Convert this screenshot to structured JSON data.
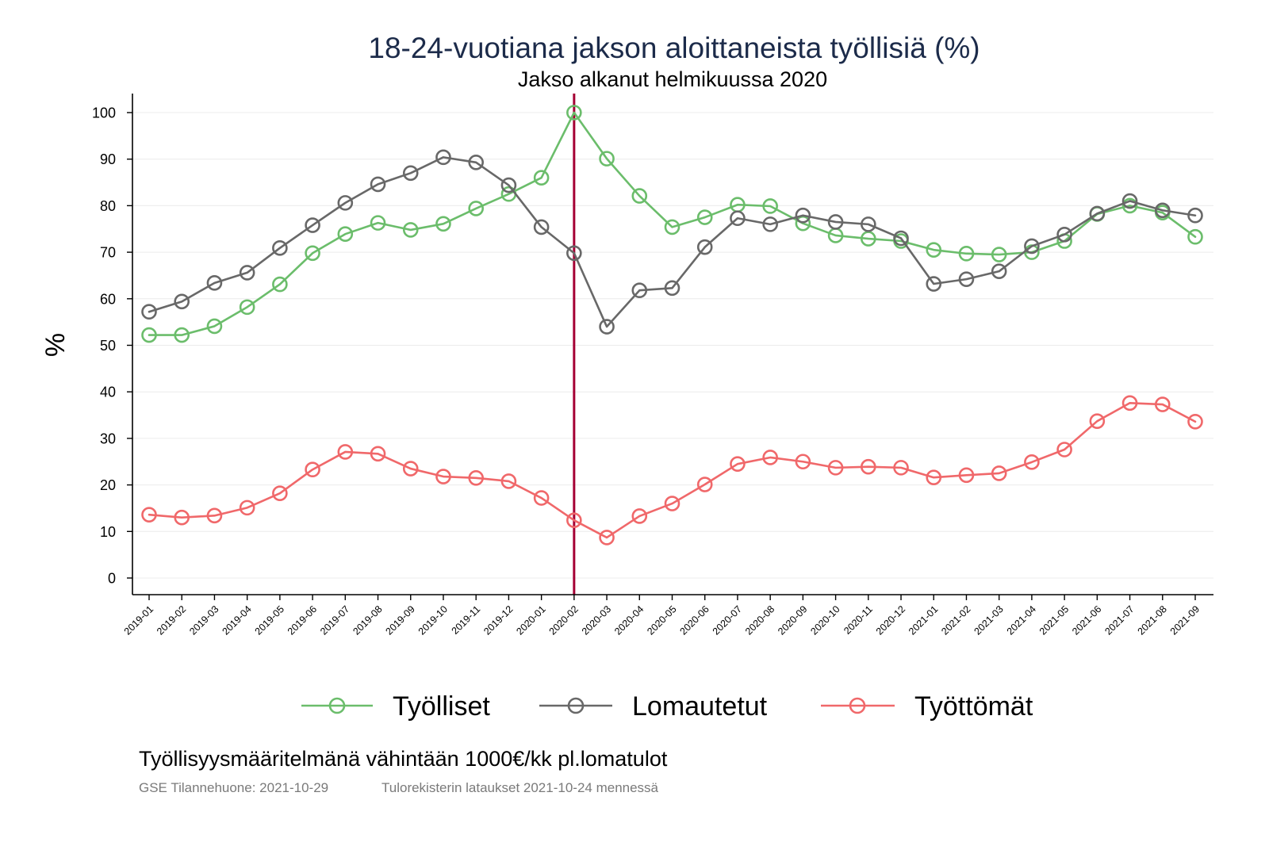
{
  "chart_data": {
    "type": "line",
    "title": "18-24-vuotiana jakson aloittaneista työllisiä (%)",
    "subtitle": "Jakso alkanut helmikuussa 2020",
    "ylabel": "%",
    "ylim": [
      0,
      100
    ],
    "yticks": [
      0,
      10,
      20,
      30,
      40,
      50,
      60,
      70,
      80,
      90,
      100
    ],
    "grid": true,
    "legend_position": "bottom",
    "x": [
      "2019-01",
      "2019-02",
      "2019-03",
      "2019-04",
      "2019-05",
      "2019-06",
      "2019-07",
      "2019-08",
      "2019-09",
      "2019-10",
      "2019-11",
      "2019-12",
      "2020-01",
      "2020-02",
      "2020-03",
      "2020-04",
      "2020-05",
      "2020-06",
      "2020-07",
      "2020-08",
      "2020-09",
      "2020-10",
      "2020-11",
      "2020-12",
      "2021-01",
      "2021-02",
      "2021-03",
      "2021-04",
      "2021-05",
      "2021-06",
      "2021-07",
      "2021-08",
      "2021-09"
    ],
    "reference_line": {
      "x": "2020-02",
      "color": "#a50034"
    },
    "series": [
      {
        "name": "Työlliset",
        "color": "#6bbd6b",
        "values": [
          52.2,
          52.2,
          54.1,
          58.2,
          63.1,
          69.8,
          73.9,
          76.3,
          74.8,
          76.1,
          79.4,
          82.5,
          86.0,
          100.0,
          90.1,
          82.1,
          75.4,
          77.5,
          80.2,
          79.9,
          76.2,
          73.6,
          72.9,
          72.4,
          70.5,
          69.7,
          69.5,
          70.0,
          72.4,
          78.2,
          80.0,
          78.5,
          73.3
        ]
      },
      {
        "name": "Lomautetut",
        "color": "#686868",
        "values": [
          57.2,
          59.4,
          63.4,
          65.6,
          70.9,
          75.8,
          80.6,
          84.6,
          87.0,
          90.4,
          89.3,
          84.4,
          75.4,
          69.8,
          54.0,
          61.8,
          62.3,
          71.1,
          77.3,
          76.0,
          77.9,
          76.5,
          76.0,
          73.0,
          63.2,
          64.2,
          65.9,
          71.3,
          73.8,
          78.3,
          81.0,
          79.0,
          77.9
        ]
      },
      {
        "name": "Työttömät",
        "color": "#f0686a",
        "values": [
          13.6,
          13.0,
          13.4,
          15.1,
          18.2,
          23.3,
          27.1,
          26.7,
          23.5,
          21.8,
          21.5,
          20.8,
          17.2,
          12.4,
          8.7,
          13.3,
          16.0,
          20.1,
          24.5,
          25.9,
          25.0,
          23.7,
          23.9,
          23.7,
          21.6,
          22.1,
          22.5,
          24.9,
          27.6,
          33.7,
          37.6,
          37.3,
          33.6
        ]
      }
    ]
  },
  "footnote": "Työllisyysmääritelmänä vähintään 1000€/kk pl.lomatulot",
  "source": {
    "updated": "GSE Tilannehuone: 2021-10-29",
    "data_note": "Tulorekisterin lataukset 2021-10-24 mennessä"
  }
}
